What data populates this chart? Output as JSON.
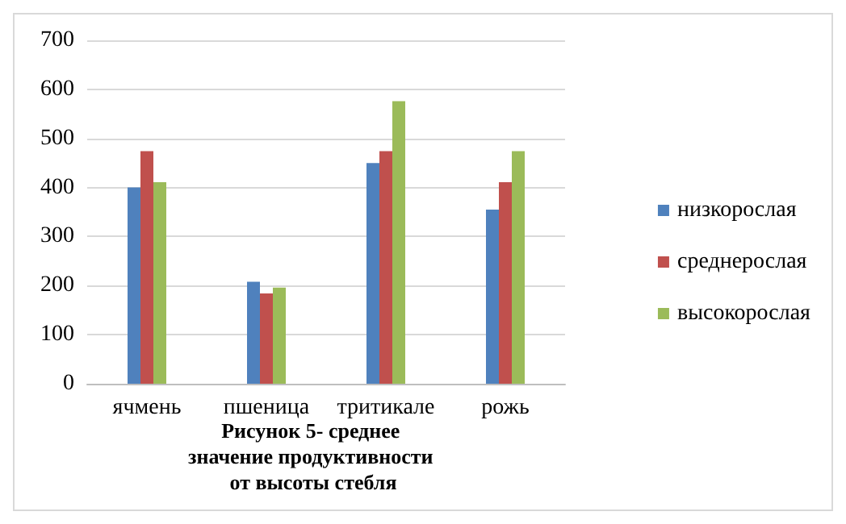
{
  "chart_data": {
    "type": "bar",
    "title": "Рисунок 5- среднее значение продуктивности от высоты стебля",
    "categories": [
      "ячмень",
      "пшеница",
      "тритикале",
      "рожь"
    ],
    "series": [
      {
        "name": "низкорослая",
        "color": "#4f81bd",
        "values": [
          400,
          208,
          450,
          355
        ]
      },
      {
        "name": "среднерослая",
        "color": "#c0504d",
        "values": [
          474,
          184,
          474,
          411
        ]
      },
      {
        "name": "высокорослая",
        "color": "#9bbb59",
        "values": [
          411,
          196,
          576,
          474
        ]
      }
    ],
    "ylim": [
      0,
      700
    ],
    "yticks": [
      0,
      100,
      200,
      300,
      400,
      500,
      600,
      700
    ],
    "grid": "y",
    "legend": "right"
  }
}
